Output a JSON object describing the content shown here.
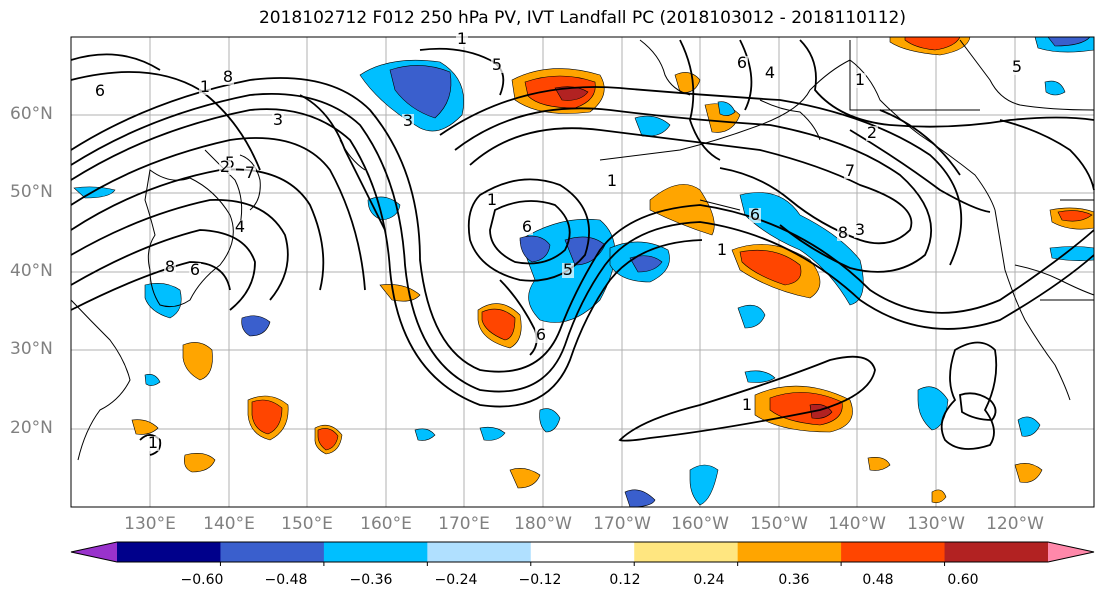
{
  "title": "2018102712 F012 250 hPa PV, IVT Landfall PC (2018103012 - 2018110112)",
  "lat_labels": [
    "60°N",
    "50°N",
    "40°N",
    "30°N",
    "20°N"
  ],
  "lon_labels": [
    "130°E",
    "140°E",
    "150°E",
    "160°E",
    "170°E",
    "180°W",
    "170°W",
    "160°W",
    "150°W",
    "140°W",
    "130°W",
    "120°W"
  ],
  "colorbar": {
    "ticks": [
      "−0.60",
      "−0.48",
      "−0.36",
      "−0.24",
      "−0.12",
      "0.12",
      "0.24",
      "0.36",
      "0.48",
      "0.60"
    ],
    "colors": [
      "#9932cc",
      "#00008b",
      "#3a5fcd",
      "#00bfff",
      "#b0e0ff",
      "#ffffff",
      "#ffe680",
      "#ffa500",
      "#ff4500",
      "#b22222",
      "#ff88aa"
    ]
  },
  "contour_labels": [
    "6",
    "8",
    "1",
    "5",
    "7",
    "3",
    "4",
    "2",
    "6",
    "8",
    "1",
    "5",
    "4",
    "6",
    "5",
    "3",
    "2",
    "1",
    "6",
    "1",
    "7",
    "8",
    "1",
    "1",
    "6",
    "5",
    "6",
    "3",
    "1",
    "1"
  ],
  "shading_colors": {
    "neg_light": "#00bfff",
    "neg_mid": "#3a5fcd",
    "pos_light": "#ffa500",
    "pos_mid": "#ff4500",
    "pos_dark": "#b22222",
    "pos_faint": "#ffe680"
  }
}
